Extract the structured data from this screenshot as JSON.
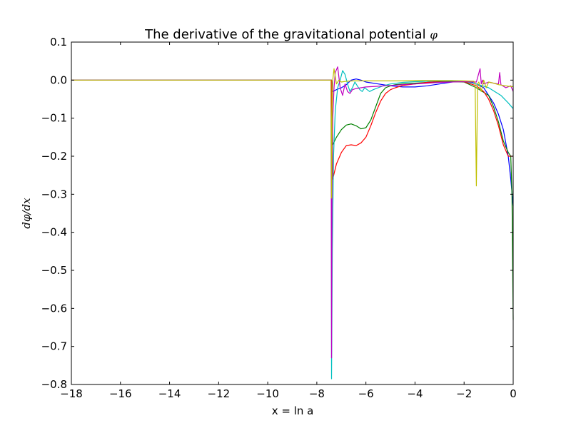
{
  "chart_data": {
    "type": "line",
    "title": "The derivative of the gravitational potential φ",
    "title_text": "The derivative of the gravitational potential ",
    "title_symbol": "φ",
    "xlabel": "x = ln a",
    "ylabel": "dφ/dx",
    "xlim": [
      -18,
      0
    ],
    "ylim": [
      -0.8,
      0.1
    ],
    "xticks": [
      -18,
      -16,
      -14,
      -12,
      -10,
      -8,
      -6,
      -4,
      -2,
      0
    ],
    "xtick_labels": [
      "−18",
      "−16",
      "−14",
      "−12",
      "−10",
      "−8",
      "−6",
      "−4",
      "−2",
      "0"
    ],
    "yticks": [
      0.1,
      0.0,
      -0.1,
      -0.2,
      -0.3,
      -0.4,
      -0.5,
      -0.6,
      -0.7,
      -0.8
    ],
    "ytick_labels": [
      "0.1",
      "0.0",
      "−0.1",
      "−0.2",
      "−0.3",
      "−0.4",
      "−0.5",
      "−0.6",
      "−0.7",
      "−0.8"
    ],
    "grid": false,
    "legend": false,
    "series": [
      {
        "color": "#0000ff",
        "x": [
          -18,
          -7.4,
          -7.35,
          -7.2,
          -7.0,
          -6.8,
          -6.6,
          -6.4,
          -6.2,
          -6.0,
          -5.5,
          -5.0,
          -4.5,
          -4.0,
          -3.5,
          -3.0,
          -2.5,
          -2.0,
          -1.8,
          -1.5,
          -1.2,
          -1.0,
          -0.8,
          -0.6,
          -0.4,
          -0.2,
          -0.1,
          0
        ],
        "y": [
          0,
          0,
          -0.03,
          -0.025,
          -0.02,
          -0.012,
          0.0,
          0.003,
          0.0,
          -0.005,
          -0.01,
          -0.015,
          -0.018,
          -0.018,
          -0.015,
          -0.01,
          -0.005,
          -0.003,
          -0.004,
          -0.01,
          -0.02,
          -0.04,
          -0.06,
          -0.09,
          -0.13,
          -0.2,
          -0.26,
          -0.33
        ]
      },
      {
        "color": "#008000",
        "x": [
          -18,
          -7.4,
          -7.35,
          -7.2,
          -7.0,
          -6.8,
          -6.6,
          -6.4,
          -6.2,
          -6.0,
          -5.8,
          -5.6,
          -5.4,
          -5.2,
          -5.0,
          -4.8,
          -4.5,
          -4.0,
          -3.5,
          -3.0,
          -2.5,
          -2.0,
          -1.5,
          -1.0,
          -0.8,
          -0.6,
          -0.4,
          -0.2,
          -0.1,
          -0.05,
          0
        ],
        "y": [
          0,
          0,
          -0.17,
          -0.15,
          -0.13,
          -0.118,
          -0.115,
          -0.12,
          -0.128,
          -0.125,
          -0.105,
          -0.07,
          -0.035,
          -0.02,
          -0.015,
          -0.012,
          -0.01,
          -0.008,
          -0.006,
          -0.005,
          -0.004,
          -0.005,
          -0.02,
          -0.04,
          -0.07,
          -0.11,
          -0.16,
          -0.19,
          -0.2,
          -0.3,
          -0.63
        ]
      },
      {
        "color": "#ff0000",
        "x": [
          -18,
          -7.4,
          -7.35,
          -7.2,
          -7.0,
          -6.8,
          -6.6,
          -6.4,
          -6.2,
          -6.0,
          -5.8,
          -5.6,
          -5.4,
          -5.2,
          -5.0,
          -4.8,
          -4.5,
          -4.0,
          -3.5,
          -3.0,
          -2.5,
          -2.0,
          -1.5,
          -1.2,
          -1.0,
          -0.8,
          -0.6,
          -0.4,
          -0.2,
          -0.05,
          0
        ],
        "y": [
          0,
          0,
          -0.26,
          -0.22,
          -0.19,
          -0.172,
          -0.17,
          -0.172,
          -0.165,
          -0.15,
          -0.12,
          -0.085,
          -0.055,
          -0.035,
          -0.025,
          -0.02,
          -0.014,
          -0.01,
          -0.006,
          -0.003,
          -0.002,
          -0.004,
          -0.015,
          -0.03,
          -0.05,
          -0.08,
          -0.12,
          -0.17,
          -0.2,
          -0.2,
          -0.2
        ]
      },
      {
        "color": "#00bfbf",
        "x": [
          -18,
          -7.42,
          -7.4,
          -7.37,
          -7.32,
          -7.25,
          -7.15,
          -7.05,
          -6.95,
          -6.85,
          -6.75,
          -6.65,
          -6.55,
          -6.45,
          -6.35,
          -6.25,
          -6.15,
          -6.05,
          -5.95,
          -5.85,
          -5.7,
          -5.5,
          -5.3,
          -5.0,
          -4.5,
          -4.0,
          -3.5,
          -3.0,
          -2.5,
          -2.0,
          -1.5,
          -1.0,
          -0.5,
          -0.2,
          0
        ],
        "y": [
          0,
          0,
          -0.785,
          -0.45,
          -0.2,
          -0.08,
          -0.02,
          0.0,
          0.025,
          0.015,
          -0.01,
          -0.03,
          -0.02,
          -0.005,
          -0.015,
          -0.025,
          -0.03,
          -0.02,
          -0.025,
          -0.03,
          -0.025,
          -0.02,
          -0.015,
          -0.01,
          -0.006,
          -0.004,
          -0.003,
          -0.002,
          -0.002,
          -0.003,
          -0.01,
          -0.02,
          -0.04,
          -0.06,
          -0.075
        ]
      },
      {
        "color": "#bf00bf",
        "x": [
          -18,
          -7.42,
          -7.4,
          -7.38,
          -7.35,
          -7.3,
          -7.25,
          -7.15,
          -7.05,
          -6.95,
          -6.85,
          -6.75,
          -6.65,
          -6.55,
          -6.4,
          -6.2,
          -6.0,
          -5.5,
          -5.0,
          -4.5,
          -4.0,
          -3.5,
          -3.0,
          -2.5,
          -2.0,
          -1.5,
          -1.35,
          -1.3,
          -1.25,
          -1.2,
          -1.0,
          -0.8,
          -0.6,
          -0.55,
          -0.5,
          -0.3,
          -0.1,
          0
        ],
        "y": [
          0,
          0,
          -0.73,
          -0.3,
          -0.1,
          -0.02,
          0.02,
          0.035,
          -0.02,
          -0.04,
          -0.01,
          -0.03,
          -0.035,
          -0.025,
          -0.022,
          -0.02,
          -0.018,
          -0.016,
          -0.014,
          -0.012,
          -0.01,
          -0.008,
          -0.006,
          -0.005,
          -0.004,
          -0.005,
          0.03,
          -0.01,
          0.0,
          -0.01,
          -0.005,
          -0.008,
          -0.01,
          0.02,
          -0.012,
          -0.02,
          -0.015,
          -0.03
        ]
      },
      {
        "color": "#bfbf00",
        "x": [
          -18,
          -7.42,
          -7.4,
          -7.38,
          -7.35,
          -7.3,
          -7.25,
          -7.2,
          -7.1,
          -7.0,
          -6.8,
          -6.5,
          -6.0,
          -5.5,
          -5.0,
          -4.5,
          -4.0,
          -3.5,
          -3.0,
          -2.5,
          -2.0,
          -1.6,
          -1.55,
          -1.5,
          -1.45,
          -1.4,
          -1.3,
          -1.2,
          -1.1,
          -1.0,
          -0.8,
          -0.6,
          -0.4,
          -0.2,
          0
        ],
        "y": [
          0,
          0,
          -0.31,
          -0.1,
          0.0,
          0.03,
          0.01,
          -0.01,
          0.0,
          -0.005,
          -0.003,
          -0.002,
          -0.002,
          -0.002,
          -0.002,
          -0.002,
          -0.001,
          -0.001,
          -0.001,
          -0.001,
          -0.002,
          -0.003,
          -0.01,
          -0.278,
          -0.01,
          -0.005,
          -0.03,
          0.0,
          -0.02,
          -0.005,
          -0.008,
          -0.012,
          -0.014,
          -0.016,
          -0.017
        ]
      }
    ]
  }
}
